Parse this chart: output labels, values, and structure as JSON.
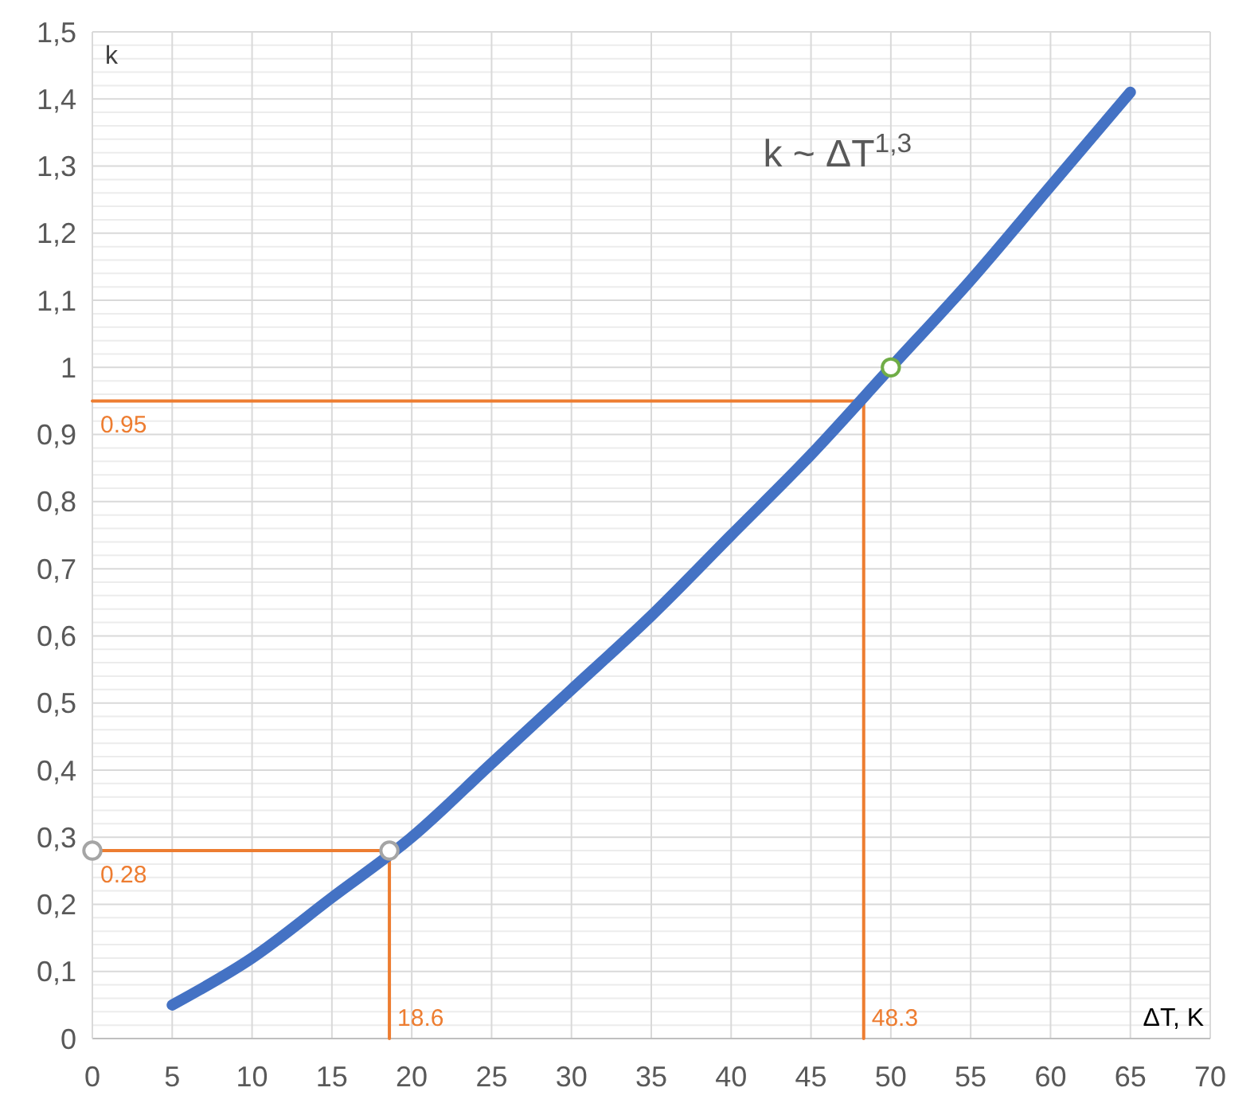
{
  "chart_data": {
    "type": "line",
    "xlabel": "ΔT, K",
    "ylabel": "k",
    "annotations": [
      "k ~ ΔT$^{1,3}$",
      {
        "text": "0.95",
        "x": 0,
        "y": 0.95
      },
      {
        "text": "0.28",
        "x": 0,
        "y": 0.28
      },
      {
        "text": "18.6",
        "x": 18.6,
        "y": 0
      },
      {
        "text": "48.3",
        "x": 48.3,
        "y": 0
      }
    ],
    "xlim": [
      0,
      70
    ],
    "xticks": [
      0,
      5,
      10,
      15,
      20,
      25,
      30,
      35,
      40,
      45,
      50,
      55,
      60,
      65,
      70
    ],
    "ylim": [
      0,
      1.5
    ],
    "yticks": [
      0,
      {
        "value": 0.1,
        "label": "0,1"
      },
      {
        "value": 0.2,
        "label": "0,2"
      },
      {
        "value": 0.3,
        "label": "0,3"
      },
      {
        "value": 0.4,
        "label": "0,4"
      },
      {
        "value": 0.5,
        "label": "0,5"
      },
      {
        "value": 0.6,
        "label": "0,6"
      },
      {
        "value": 0.7,
        "label": "0,7"
      },
      {
        "value": 0.8,
        "label": "0,8"
      },
      {
        "value": 0.9,
        "label": "0,9"
      },
      1,
      {
        "value": 1.1,
        "label": "1,1"
      },
      {
        "value": 1.2,
        "label": "1,2"
      },
      {
        "value": 1.3,
        "label": "1,3"
      },
      {
        "value": 1.4,
        "label": "1,4"
      },
      {
        "value": 1.5,
        "label": "1,5"
      }
    ],
    "grid": true,
    "series": [
      {
        "color": "#4472c4",
        "x": [
          5,
          10,
          15,
          20,
          25,
          30,
          35,
          40,
          45,
          50,
          55,
          60,
          65
        ],
        "values": [
          0.05,
          0.12,
          0.21,
          0.3,
          0.41,
          0.52,
          0.63,
          0.75,
          0.87,
          1,
          1.13,
          1.27,
          1.41
        ]
      },
      {
        "color": "#ed7d31",
        "x": [
          0,
          18.6,
          18.6
        ],
        "values": [
          0.28,
          0.28,
          0
        ]
      },
      {
        "color": "#ed7d31",
        "x": [
          0,
          48.3,
          48.3
        ],
        "values": [
          0.95,
          0.95,
          0
        ]
      },
      {
        "type": "scatter",
        "color": "#a5a5a5",
        "marker": "circle",
        "x": [
          0,
          18.6
        ],
        "values": [
          0.28,
          0.28
        ]
      },
      {
        "type": "scatter",
        "color": "#70ad47",
        "marker": "circle",
        "x": [
          50
        ],
        "values": [
          1
        ]
      }
    ]
  }
}
